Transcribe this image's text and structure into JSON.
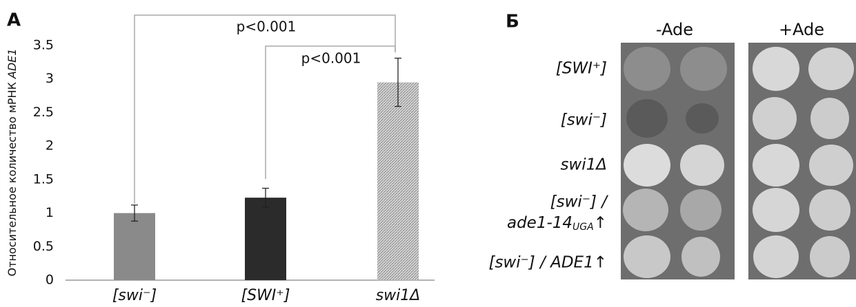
{
  "chart_data": {
    "type": "bar",
    "panel_label": "А",
    "ylabel": "Относительное количество мРНК",
    "ylabel_italic": "ADE1",
    "categories": [
      "[swi⁻]",
      "[SWI⁺]",
      "swi1Δ"
    ],
    "values": [
      1.0,
      1.23,
      2.95
    ],
    "errors": [
      0.12,
      0.14,
      0.36
    ],
    "colors": [
      "#8a8a8a",
      "#2b2b2b",
      "#c4c4c4"
    ],
    "hatched": [
      false,
      false,
      true
    ],
    "ylim": [
      0,
      3.5
    ],
    "yticks": [
      0,
      0.5,
      1,
      1.5,
      2,
      2.5,
      3,
      3.5
    ],
    "annotations": [
      "p<0.001",
      "p<0.001"
    ]
  },
  "panel_b": {
    "panel_label": "Б",
    "columns": [
      "-Ade",
      "+Ade"
    ],
    "rows": [
      {
        "label": "[SWI⁺]"
      },
      {
        "label": "[swi⁻]"
      },
      {
        "label": "swi1Δ"
      },
      {
        "line1": "[swi⁻] /",
        "line2": "ade1-14",
        "line2_subscript": "UGA",
        "line2_suffix": "↑"
      },
      {
        "label": "[swi⁻] / ADE1↑"
      }
    ]
  }
}
